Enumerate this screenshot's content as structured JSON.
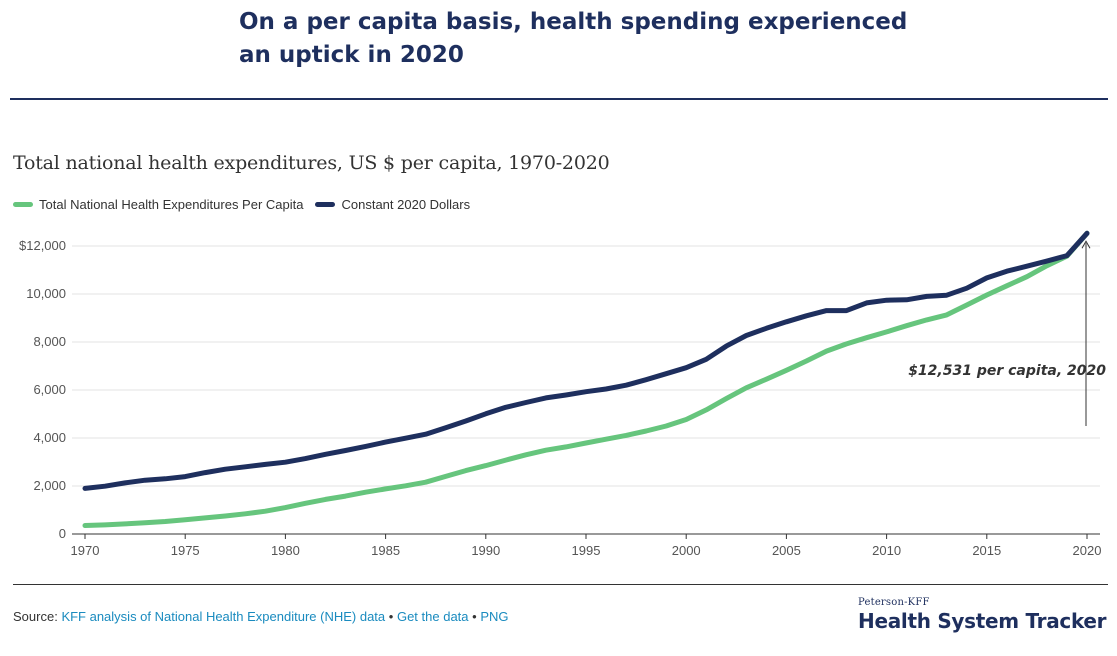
{
  "header": {
    "title": "On a per capita basis, health spending experienced an uptick in 2020"
  },
  "colors": {
    "green": "#66c57d",
    "navy": "#1e2f5e",
    "grid": "#e3e3e3",
    "axis": "#333333",
    "link": "#1a8bbf"
  },
  "chart_data": {
    "type": "line",
    "title": "Total national health expenditures, US $ per capita, 1970-2020",
    "xlabel": "",
    "ylabel": "",
    "xlim": [
      1970,
      2020
    ],
    "ylim": [
      0,
      12000
    ],
    "x_ticks": [
      1970,
      1975,
      1980,
      1985,
      1990,
      1995,
      2000,
      2005,
      2010,
      2015,
      2020
    ],
    "y_ticks": [
      0,
      2000,
      4000,
      6000,
      8000,
      10000,
      12000
    ],
    "y_tick_labels": [
      "0",
      "2,000",
      "4,000",
      "6,000",
      "8,000",
      "10,000",
      "$12,000"
    ],
    "x": [
      1970,
      1971,
      1972,
      1973,
      1974,
      1975,
      1976,
      1977,
      1978,
      1979,
      1980,
      1981,
      1982,
      1983,
      1984,
      1985,
      1986,
      1987,
      1988,
      1989,
      1990,
      1991,
      1992,
      1993,
      1994,
      1995,
      1996,
      1997,
      1998,
      1999,
      2000,
      2001,
      2002,
      2003,
      2004,
      2005,
      2006,
      2007,
      2008,
      2009,
      2010,
      2011,
      2012,
      2013,
      2014,
      2015,
      2016,
      2017,
      2018,
      2019,
      2020
    ],
    "series": [
      {
        "name": "Total National Health Expenditures Per Capita",
        "color": "#66c57d",
        "values": [
          353,
          380,
          420,
          470,
          520,
          590,
          670,
          750,
          840,
          950,
          1100,
          1280,
          1440,
          1580,
          1740,
          1880,
          2010,
          2160,
          2400,
          2640,
          2850,
          3080,
          3300,
          3490,
          3630,
          3790,
          3950,
          4110,
          4290,
          4500,
          4770,
          5170,
          5640,
          6090,
          6450,
          6820,
          7210,
          7620,
          7920,
          8180,
          8420,
          8680,
          8920,
          9130,
          9540,
          9960,
          10340,
          10720,
          11180,
          11580,
          12531
        ]
      },
      {
        "name": "Constant 2020 Dollars",
        "color": "#1e2f5e",
        "values": [
          1900,
          1990,
          2130,
          2240,
          2300,
          2390,
          2560,
          2700,
          2800,
          2900,
          2990,
          3140,
          3320,
          3480,
          3650,
          3830,
          3990,
          4160,
          4430,
          4710,
          5010,
          5280,
          5480,
          5670,
          5790,
          5930,
          6040,
          6200,
          6430,
          6680,
          6930,
          7280,
          7830,
          8270,
          8570,
          8840,
          9090,
          9310,
          9310,
          9630,
          9740,
          9760,
          9900,
          9950,
          10240,
          10670,
          10950,
          11160,
          11370,
          11600,
          12531
        ]
      }
    ],
    "annotation": {
      "text": "$12,531 per capita, 2020",
      "year": 2020,
      "value": 12531
    }
  },
  "source": {
    "prefix": "Source:",
    "link1": "KFF analysis of National Health Expenditure (NHE) data",
    "sep1": "•",
    "link2": "Get the data",
    "sep2": "•",
    "link3": "PNG"
  },
  "brand": {
    "top": "Peterson-KFF",
    "main": "Health System Tracker"
  }
}
